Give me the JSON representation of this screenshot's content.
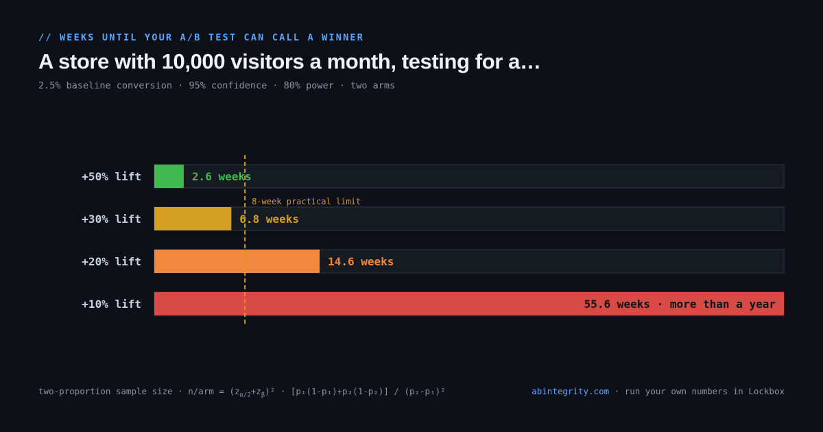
{
  "header": {
    "kicker": "// WEEKS UNTIL YOUR A/B TEST CAN CALL A WINNER",
    "title": "A store with 10,000 visitors a month, testing for a…",
    "subtitle": "2.5% baseline conversion · 95% confidence · 80% power · two arms"
  },
  "chart_data": {
    "type": "bar",
    "orientation": "horizontal",
    "categories": [
      "+50% lift",
      "+30% lift",
      "+20% lift",
      "+10% lift"
    ],
    "values": [
      2.6,
      6.8,
      14.6,
      55.6
    ],
    "value_labels": [
      "2.6 weeks",
      "6.8 weeks",
      "14.6 weeks",
      "55.6 weeks · more than a year"
    ],
    "colors": [
      "#3fb950",
      "#d4a024",
      "#f0883e",
      "#da4a44"
    ],
    "label_colors": [
      "#3fb950",
      "#d4a024",
      "#f0883e",
      "#0d1117"
    ],
    "xlim": [
      0,
      55.6
    ],
    "grid": false,
    "reference_line": {
      "value": 8,
      "label": "8-week practical limit",
      "color": "#d29922"
    }
  },
  "footer": {
    "formula_prefix": "two-proportion sample size · n/arm = (z",
    "formula_sub1": "α/2",
    "formula_mid": "+z",
    "formula_sub2": "β",
    "formula_suffix": ")² · [p₁(1-p₁)+p₂(1-p₂)] / (p₂-p₁)²",
    "link": "abintegrity.com",
    "tagline": " · run your own numbers in Lockbox"
  }
}
